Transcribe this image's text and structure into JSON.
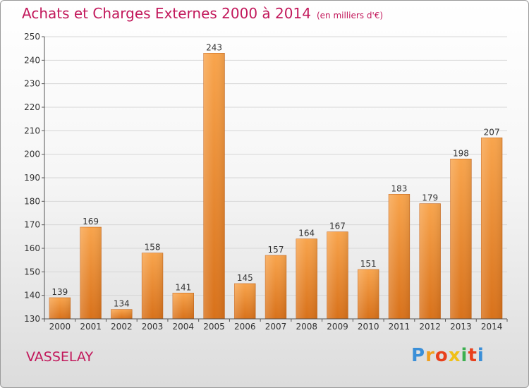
{
  "header": {
    "title": "Achats et Charges Externes 2000 à 2014",
    "unit": "(en milliers d'€)"
  },
  "footer": {
    "commune": "VASSELAY",
    "logo_letters": [
      "P",
      "r",
      "o",
      "x",
      "i",
      "t",
      "i"
    ],
    "logo_colors": [
      "#3a8fd8",
      "#f0a020",
      "#e8401c",
      "#f0c018",
      "#3cb050",
      "#e8401c",
      "#3a8fd8"
    ]
  },
  "chart_data": {
    "type": "bar",
    "categories": [
      "2000",
      "2001",
      "2002",
      "2003",
      "2004",
      "2005",
      "2006",
      "2007",
      "2008",
      "2009",
      "2010",
      "2011",
      "2012",
      "2013",
      "2014"
    ],
    "values": [
      139,
      169,
      134,
      158,
      141,
      243,
      145,
      157,
      164,
      167,
      151,
      183,
      179,
      198,
      207
    ],
    "ylim": [
      130,
      250
    ],
    "yticks": [
      130,
      140,
      150,
      160,
      170,
      180,
      190,
      200,
      210,
      220,
      230,
      240,
      250
    ],
    "grid": true,
    "bar_color": "#f2912f",
    "title": "Achats et Charges Externes 2000 à 2014",
    "xlabel": "",
    "ylabel": ""
  }
}
